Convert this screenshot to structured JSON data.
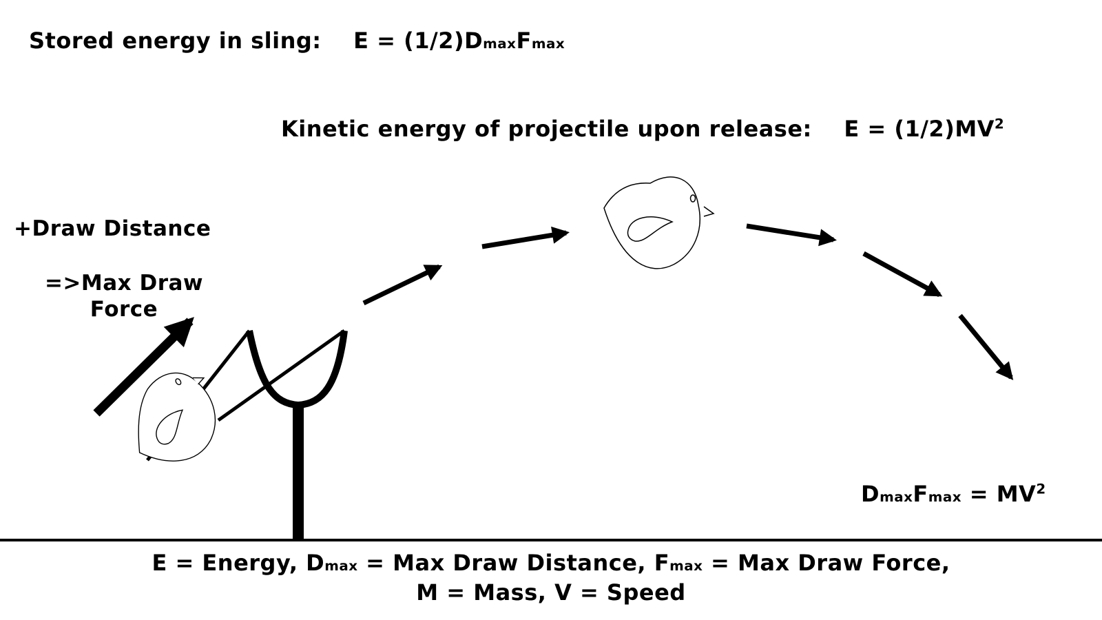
{
  "stored_energy": {
    "label": "Stored energy in sling:",
    "formula_prefix": "E = (1/2)D",
    "sub1": "max",
    "mid": "F",
    "sub2": "max"
  },
  "kinetic_energy": {
    "label": "Kinetic energy of projectile upon release:",
    "formula": "E = (1/2)MV",
    "exponent": "2"
  },
  "draw": {
    "distance_label": "+Draw Distance",
    "force_line1": "=>Max Draw",
    "force_line2": "Force"
  },
  "relation": {
    "d": "D",
    "sub1": "max",
    "f": "F",
    "sub2": "max",
    "rest": " = MV",
    "exponent": "2"
  },
  "legend": {
    "e_part": "E = Energy, D",
    "d_sub": "max",
    "d_rest": " = Max Draw Distance, F",
    "f_sub": "max",
    "f_rest": " = Max Draw Force,",
    "line2": "M = Mass, V = Speed"
  },
  "icons": {
    "bird": "bird-icon",
    "arrow": "arrow-icon",
    "slingshot": "slingshot-icon"
  },
  "colors": {
    "ink": "#000000",
    "background": "#ffffff"
  }
}
